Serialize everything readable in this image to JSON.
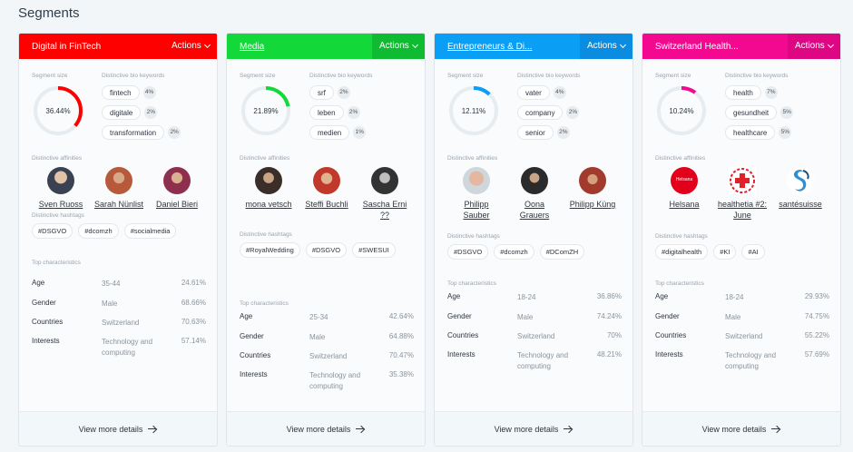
{
  "page": {
    "title": "Segments"
  },
  "labels": {
    "segment_size": "Segment size",
    "bio_keywords": "Distinctive bio keywords",
    "affinities": "Distinctive affinities",
    "hashtags": "Distinctive hashtags",
    "top_characteristics": "Top characteristics",
    "actions": "Actions",
    "view_more": "View more details"
  },
  "segments": [
    {
      "name": "Digital in FinTech",
      "color": "#ff0000",
      "actions_color": "#ff0000",
      "size_pct": 36.44,
      "size_label": "36.44%",
      "keywords": [
        {
          "label": "fintech",
          "count": "4%"
        },
        {
          "label": "digitale",
          "count": "2%"
        },
        {
          "label": "transformation",
          "count": "2%"
        }
      ],
      "affinities": [
        {
          "name": "Sven Ruoss",
          "avatar": "person-photo-icon"
        },
        {
          "name": "Sarah Nünlist",
          "avatar": "person-photo-icon"
        },
        {
          "name": "Daniel Bieri",
          "avatar": "person-photo-icon"
        }
      ],
      "hashtags": [
        "#DSGVO",
        "#dcomzh",
        "#socialmedia"
      ],
      "characteristics": [
        {
          "key": "Age",
          "value": "35-44",
          "pct": "24.61%"
        },
        {
          "key": "Gender",
          "value": "Male",
          "pct": "68.66%"
        },
        {
          "key": "Countries",
          "value": "Switzerland",
          "pct": "70.63%"
        },
        {
          "key": "Interests",
          "value": "Technology and computing",
          "pct": "57.14%"
        }
      ]
    },
    {
      "name": "Media",
      "color": "#13d83a",
      "actions_color": "#0fbb31",
      "size_pct": 21.89,
      "size_label": "21.89%",
      "keywords": [
        {
          "label": "srf",
          "count": "2%"
        },
        {
          "label": "leben",
          "count": "2%"
        },
        {
          "label": "medien",
          "count": "1%"
        }
      ],
      "affinities": [
        {
          "name": "mona vetsch",
          "avatar": "person-photo-icon"
        },
        {
          "name": "Steffi Buchli",
          "avatar": "person-photo-icon"
        },
        {
          "name": "Sascha Erni ??",
          "avatar": "person-photo-icon"
        }
      ],
      "hashtags": [
        "#RoyalWedding",
        "#DSGVO",
        "#SWESUI"
      ],
      "characteristics": [
        {
          "key": "Age",
          "value": "25-34",
          "pct": "42.64%"
        },
        {
          "key": "Gender",
          "value": "Male",
          "pct": "64.88%"
        },
        {
          "key": "Countries",
          "value": "Switzerland",
          "pct": "70.47%"
        },
        {
          "key": "Interests",
          "value": "Technology and computing",
          "pct": "35.38%"
        }
      ]
    },
    {
      "name": "Entrepreneurs & Di...",
      "color": "#0a9ef5",
      "actions_color": "#0a8de0",
      "size_pct": 12.11,
      "size_label": "12.11%",
      "keywords": [
        {
          "label": "vater",
          "count": "4%"
        },
        {
          "label": "company",
          "count": "2%"
        },
        {
          "label": "senior",
          "count": "2%"
        }
      ],
      "affinities": [
        {
          "name": "Philipp Sauber",
          "avatar": "person-photo-icon"
        },
        {
          "name": "Oona Grauers",
          "avatar": "person-photo-icon"
        },
        {
          "name": "Philipp Küng",
          "avatar": "person-photo-icon"
        }
      ],
      "hashtags": [
        "#DSGVO",
        "#dcomzh",
        "#DComZH"
      ],
      "characteristics": [
        {
          "key": "Age",
          "value": "18-24",
          "pct": "36.86%"
        },
        {
          "key": "Gender",
          "value": "Male",
          "pct": "74.24%"
        },
        {
          "key": "Countries",
          "value": "Switzerland",
          "pct": "70%"
        },
        {
          "key": "Interests",
          "value": "Technology and computing",
          "pct": "48.21%"
        }
      ]
    },
    {
      "name": "Switzerland Health...",
      "color": "#f2098f",
      "actions_color": "#df0683",
      "size_pct": 10.24,
      "size_label": "10.24%",
      "keywords": [
        {
          "label": "health",
          "count": "7%"
        },
        {
          "label": "gesundheit",
          "count": "5%"
        },
        {
          "label": "healthcare",
          "count": "5%"
        }
      ],
      "affinities": [
        {
          "name": "Helsana",
          "avatar": "helsana-logo",
          "logo_text": "Helsana"
        },
        {
          "name": "healthetia #2: June",
          "avatar": "healthetia-logo"
        },
        {
          "name": "santésuisse",
          "avatar": "santesuisse-logo"
        }
      ],
      "hashtags": [
        "#digitalhealth",
        "#KI",
        "#AI"
      ],
      "characteristics": [
        {
          "key": "Age",
          "value": "18-24",
          "pct": "29.93%"
        },
        {
          "key": "Gender",
          "value": "Male",
          "pct": "74.75%"
        },
        {
          "key": "Countries",
          "value": "Switzerland",
          "pct": "55.22%"
        },
        {
          "key": "Interests",
          "value": "Technology and computing",
          "pct": "57.69%"
        }
      ]
    }
  ]
}
